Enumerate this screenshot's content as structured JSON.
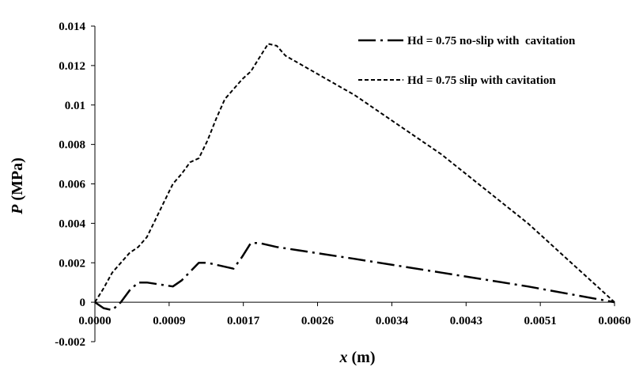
{
  "chart_data": {
    "type": "line",
    "xlabel": {
      "var": "x",
      "unit": " (m)"
    },
    "ylabel": {
      "var": "P",
      "unit": " (MPa)"
    },
    "xlim": [
      0,
      0.006
    ],
    "ylim": [
      -0.002,
      0.014
    ],
    "x_ticks": [
      {
        "value": 0.0,
        "label": "0.0000"
      },
      {
        "value": 0.000857,
        "label": "0.0009"
      },
      {
        "value": 0.001714,
        "label": "0.0017"
      },
      {
        "value": 0.002571,
        "label": "0.0026"
      },
      {
        "value": 0.003429,
        "label": "0.0034"
      },
      {
        "value": 0.004286,
        "label": "0.0043"
      },
      {
        "value": 0.005143,
        "label": "0.0051"
      },
      {
        "value": 0.006,
        "label": "0.0060"
      }
    ],
    "y_ticks": [
      {
        "value": 0.014,
        "label": "0.014"
      },
      {
        "value": 0.012,
        "label": "0.012"
      },
      {
        "value": 0.01,
        "label": "0.01"
      },
      {
        "value": 0.008,
        "label": "0.008"
      },
      {
        "value": 0.006,
        "label": "0.006"
      },
      {
        "value": 0.004,
        "label": "0.004"
      },
      {
        "value": 0.002,
        "label": "0.002"
      },
      {
        "value": 0.0,
        "label": "0"
      },
      {
        "value": -0.002,
        "label": "-0.002"
      }
    ],
    "grid": false,
    "legend_position": "top-right",
    "series": [
      {
        "name": "Hd = 0.75 no-slip with  cavitation",
        "color": "#000000",
        "style": "dash-dot",
        "x": [
          0.0,
          0.0001,
          0.0002,
          0.0003,
          0.0004,
          0.0005,
          0.0006,
          0.0009,
          0.001,
          0.0012,
          0.0013,
          0.0016,
          0.0017,
          0.0018,
          0.0019,
          0.0021,
          0.003,
          0.004,
          0.005,
          0.006
        ],
        "y": [
          0.0,
          -0.0003,
          -0.0004,
          0.0,
          0.0006,
          0.001,
          0.001,
          0.0008,
          0.0011,
          0.002,
          0.002,
          0.0017,
          0.0023,
          0.003,
          0.003,
          0.0028,
          0.0022,
          0.0015,
          0.0008,
          0.0
        ]
      },
      {
        "name": "Hd = 0.75 slip with cavitation",
        "color": "#000000",
        "style": "dashed",
        "x": [
          0.0,
          0.0001,
          0.0002,
          0.0003,
          0.0004,
          0.0005,
          0.0006,
          0.0007,
          0.0008,
          0.0009,
          0.001,
          0.0011,
          0.0012,
          0.0013,
          0.0014,
          0.0015,
          0.0016,
          0.0017,
          0.0018,
          0.0019,
          0.002,
          0.0021,
          0.0022,
          0.003,
          0.004,
          0.005,
          0.006
        ],
        "y": [
          0.0,
          0.0007,
          0.0015,
          0.002,
          0.0025,
          0.0028,
          0.0033,
          0.0042,
          0.0051,
          0.006,
          0.0065,
          0.0071,
          0.0073,
          0.0082,
          0.0093,
          0.0103,
          0.0108,
          0.0113,
          0.0117,
          0.0124,
          0.0131,
          0.013,
          0.0125,
          0.0105,
          0.0075,
          0.004,
          0.0
        ]
      }
    ]
  }
}
